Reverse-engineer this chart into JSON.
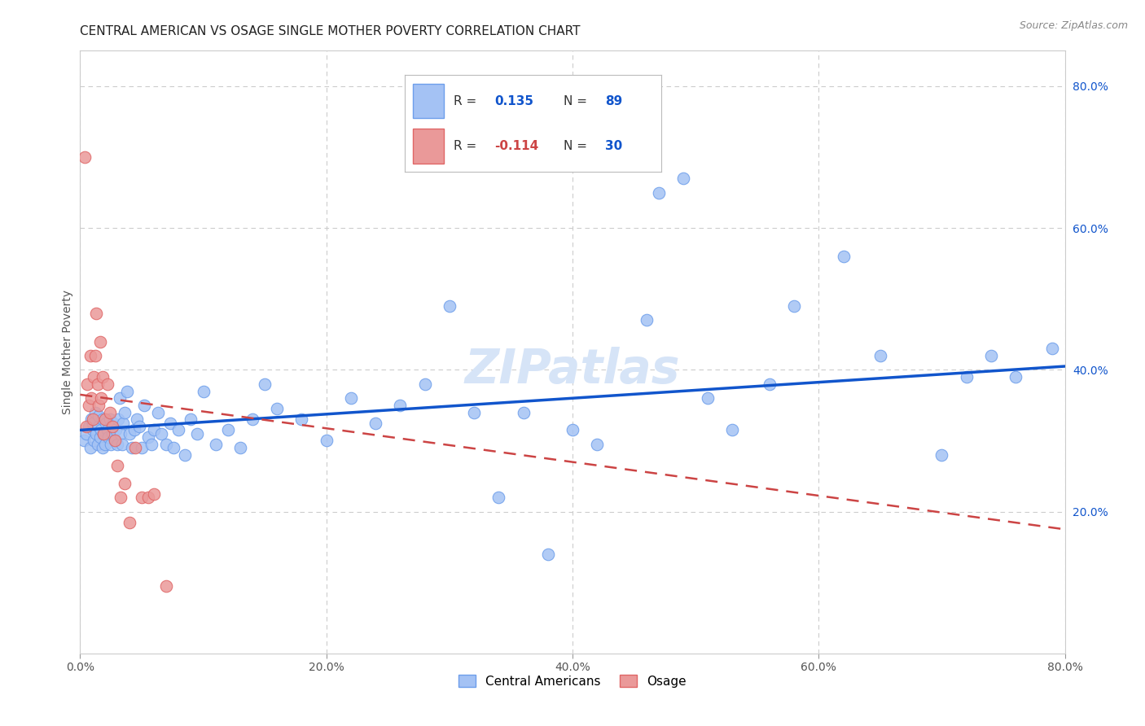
{
  "title": "CENTRAL AMERICAN VS OSAGE SINGLE MOTHER POVERTY CORRELATION CHART",
  "source": "Source: ZipAtlas.com",
  "ylabel": "Single Mother Poverty",
  "xmin": 0.0,
  "xmax": 0.8,
  "ymin": 0.0,
  "ymax": 0.85,
  "xtick_labels": [
    "0.0%",
    "20.0%",
    "40.0%",
    "60.0%",
    "80.0%"
  ],
  "xtick_values": [
    0.0,
    0.2,
    0.4,
    0.6,
    0.8
  ],
  "ytick_right_labels": [
    "20.0%",
    "40.0%",
    "60.0%",
    "80.0%"
  ],
  "ytick_right_values": [
    0.2,
    0.4,
    0.6,
    0.8
  ],
  "legend_labels": [
    "Central Americans",
    "Osage"
  ],
  "blue_fill": "#a4c2f4",
  "blue_edge": "#6d9eeb",
  "pink_fill": "#ea9999",
  "pink_edge": "#e06666",
  "blue_line_color": "#1155cc",
  "pink_line_color": "#cc4444",
  "R_blue": 0.135,
  "N_blue": 89,
  "R_pink": -0.114,
  "N_pink": 30,
  "watermark": "ZIPatlas",
  "title_fontsize": 11,
  "axis_label_fontsize": 10,
  "tick_fontsize": 10,
  "watermark_fontsize": 42,
  "watermark_color": "#d6e4f7",
  "background_color": "#ffffff",
  "grid_color": "#cccccc",
  "blue_trend_y0": 0.315,
  "blue_trend_y1": 0.405,
  "pink_trend_y0": 0.365,
  "pink_trend_y1": 0.175,
  "blue_scatter_x": [
    0.003,
    0.005,
    0.007,
    0.008,
    0.009,
    0.01,
    0.01,
    0.011,
    0.012,
    0.013,
    0.014,
    0.015,
    0.015,
    0.016,
    0.017,
    0.018,
    0.018,
    0.019,
    0.02,
    0.021,
    0.022,
    0.023,
    0.024,
    0.025,
    0.026,
    0.027,
    0.028,
    0.029,
    0.03,
    0.031,
    0.032,
    0.033,
    0.034,
    0.035,
    0.036,
    0.038,
    0.04,
    0.042,
    0.044,
    0.046,
    0.048,
    0.05,
    0.052,
    0.055,
    0.058,
    0.06,
    0.063,
    0.066,
    0.07,
    0.073,
    0.076,
    0.08,
    0.085,
    0.09,
    0.095,
    0.1,
    0.11,
    0.12,
    0.13,
    0.14,
    0.15,
    0.16,
    0.18,
    0.2,
    0.22,
    0.24,
    0.26,
    0.28,
    0.3,
    0.32,
    0.34,
    0.36,
    0.38,
    0.4,
    0.42,
    0.46,
    0.47,
    0.49,
    0.51,
    0.53,
    0.56,
    0.58,
    0.62,
    0.65,
    0.7,
    0.72,
    0.74,
    0.76,
    0.79
  ],
  "blue_scatter_y": [
    0.3,
    0.31,
    0.32,
    0.29,
    0.33,
    0.315,
    0.325,
    0.3,
    0.34,
    0.31,
    0.295,
    0.32,
    0.335,
    0.305,
    0.315,
    0.29,
    0.33,
    0.31,
    0.295,
    0.325,
    0.315,
    0.305,
    0.33,
    0.295,
    0.31,
    0.325,
    0.3,
    0.315,
    0.295,
    0.33,
    0.36,
    0.31,
    0.295,
    0.325,
    0.34,
    0.37,
    0.31,
    0.29,
    0.315,
    0.33,
    0.32,
    0.29,
    0.35,
    0.305,
    0.295,
    0.315,
    0.34,
    0.31,
    0.295,
    0.325,
    0.29,
    0.315,
    0.28,
    0.33,
    0.31,
    0.37,
    0.295,
    0.315,
    0.29,
    0.33,
    0.38,
    0.345,
    0.33,
    0.3,
    0.36,
    0.325,
    0.35,
    0.38,
    0.49,
    0.34,
    0.22,
    0.34,
    0.14,
    0.315,
    0.295,
    0.47,
    0.65,
    0.67,
    0.36,
    0.315,
    0.38,
    0.49,
    0.56,
    0.42,
    0.28,
    0.39,
    0.42,
    0.39,
    0.43
  ],
  "pink_scatter_x": [
    0.004,
    0.005,
    0.006,
    0.007,
    0.008,
    0.009,
    0.01,
    0.011,
    0.012,
    0.013,
    0.014,
    0.015,
    0.016,
    0.017,
    0.018,
    0.019,
    0.02,
    0.022,
    0.024,
    0.026,
    0.028,
    0.03,
    0.033,
    0.036,
    0.04,
    0.045,
    0.05,
    0.055,
    0.06,
    0.07
  ],
  "pink_scatter_y": [
    0.7,
    0.32,
    0.38,
    0.35,
    0.42,
    0.36,
    0.33,
    0.39,
    0.42,
    0.48,
    0.38,
    0.35,
    0.44,
    0.36,
    0.39,
    0.31,
    0.33,
    0.38,
    0.34,
    0.32,
    0.3,
    0.265,
    0.22,
    0.24,
    0.185,
    0.29,
    0.22,
    0.22,
    0.225,
    0.095
  ]
}
